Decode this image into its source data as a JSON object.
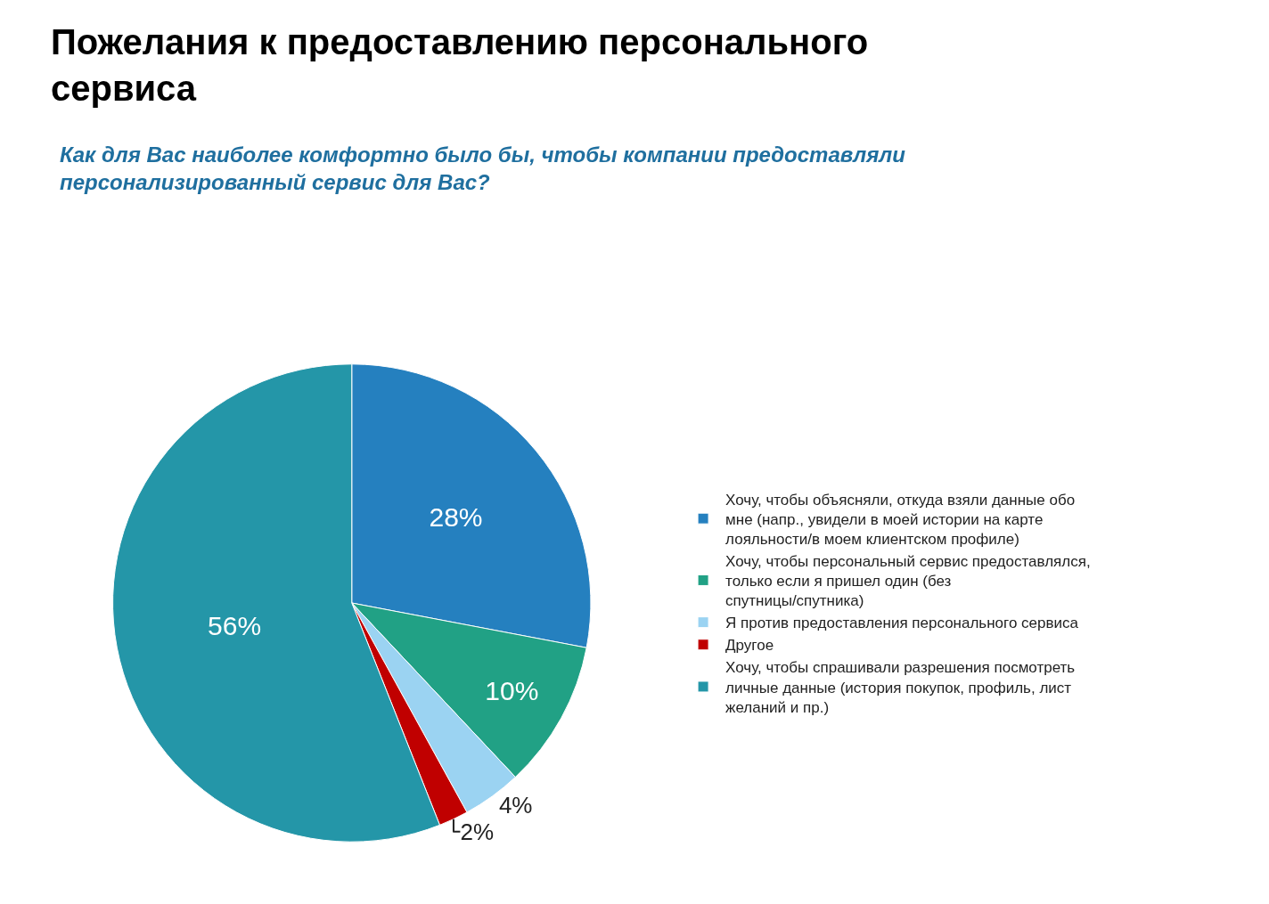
{
  "chart_data": {
    "type": "pie",
    "title": "Пожелания к предоставлению персонального сервиса",
    "subtitle": "Как для Вас наиболее комфортно было бы, чтобы компании предоставляли персонализированный сервис для Вас?",
    "categories": [
      "Хочу, чтобы объясняли, откуда взяли данные обо мне (напр., увидели в моей истории на карте лояльности/в моем клиентском профиле)",
      "Хочу, чтобы персональный сервис предоставлялся, только если я пришел один (без спутницы/спутника)",
      "Я против предоставления персонального сервиса",
      "Другое",
      "Хочу, чтобы спрашивали разрешения посмотреть личные данные (история покупок, профиль, лист желаний и пр.)"
    ],
    "values": [
      28,
      10,
      4,
      2,
      56
    ],
    "value_labels": [
      "28%",
      "10%",
      "4%",
      "2%",
      "56%"
    ],
    "colors": [
      "#2580bf",
      "#21a185",
      "#9bd3f2",
      "#c00000",
      "#2496a8"
    ],
    "legend": "right"
  }
}
